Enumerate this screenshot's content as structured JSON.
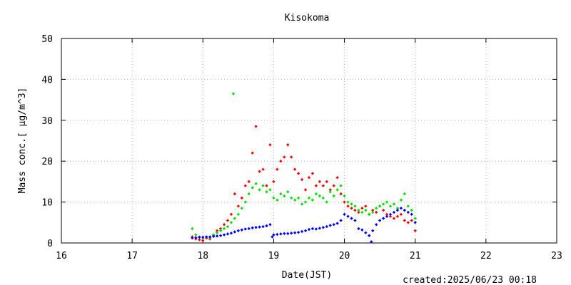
{
  "chart_data": {
    "type": "scatter",
    "title": "Kisokoma",
    "xlabel": "Date(JST)",
    "ylabel": "Mass conc.[ μg/m^3]",
    "xlim": [
      16,
      23
    ],
    "ylim": [
      0,
      50
    ],
    "xticks": [
      "16",
      "17",
      "18",
      "19",
      "20",
      "21",
      "22",
      "23"
    ],
    "yticks": [
      "0",
      "10",
      "20",
      "30",
      "40",
      "50"
    ],
    "grid": true,
    "footer": "created:2025/06/23 00:18",
    "series": [
      {
        "color": "#ff0000",
        "points": [
          [
            17.85,
            1.5
          ],
          [
            17.9,
            1.0
          ],
          [
            17.95,
            0.8
          ],
          [
            18.0,
            0.6
          ],
          [
            18.05,
            1.2
          ],
          [
            18.1,
            1.0
          ],
          [
            18.15,
            1.8
          ],
          [
            18.2,
            3.0
          ],
          [
            18.25,
            3.5
          ],
          [
            18.3,
            4.5
          ],
          [
            18.35,
            5.5
          ],
          [
            18.4,
            7.0
          ],
          [
            18.45,
            12.0
          ],
          [
            18.5,
            9.0
          ],
          [
            18.55,
            11.0
          ],
          [
            18.6,
            14.0
          ],
          [
            18.65,
            15.0
          ],
          [
            18.7,
            22.0
          ],
          [
            18.75,
            28.5
          ],
          [
            18.8,
            17.5
          ],
          [
            18.85,
            18.0
          ],
          [
            18.9,
            14.0
          ],
          [
            18.95,
            24.0
          ],
          [
            19.0,
            15.0
          ],
          [
            19.05,
            18.0
          ],
          [
            19.1,
            20.0
          ],
          [
            19.15,
            21.0
          ],
          [
            19.2,
            24.0
          ],
          [
            19.25,
            21.0
          ],
          [
            19.3,
            18.0
          ],
          [
            19.35,
            17.0
          ],
          [
            19.4,
            15.5
          ],
          [
            19.45,
            13.0
          ],
          [
            19.5,
            16.0
          ],
          [
            19.55,
            17.0
          ],
          [
            19.6,
            14.0
          ],
          [
            19.65,
            15.0
          ],
          [
            19.7,
            14.0
          ],
          [
            19.75,
            15.0
          ],
          [
            19.8,
            13.0
          ],
          [
            19.85,
            14.0
          ],
          [
            19.9,
            16.0
          ],
          [
            19.95,
            12.0
          ],
          [
            20.0,
            10.0
          ],
          [
            20.05,
            9.0
          ],
          [
            20.1,
            8.5
          ],
          [
            20.15,
            8.0
          ],
          [
            20.2,
            7.5
          ],
          [
            20.25,
            8.5
          ],
          [
            20.3,
            9.0
          ],
          [
            20.35,
            7.0
          ],
          [
            20.4,
            8.0
          ],
          [
            20.45,
            7.5
          ],
          [
            20.5,
            9.0
          ],
          [
            20.55,
            8.0
          ],
          [
            20.6,
            7.0
          ],
          [
            20.65,
            6.5
          ],
          [
            20.7,
            6.0
          ],
          [
            20.75,
            6.5
          ],
          [
            20.8,
            7.0
          ],
          [
            20.85,
            5.5
          ],
          [
            20.9,
            5.0
          ],
          [
            20.95,
            5.5
          ],
          [
            21.0,
            3.0
          ]
        ]
      },
      {
        "color": "#00e000",
        "points": [
          [
            17.85,
            3.5
          ],
          [
            17.9,
            2.0
          ],
          [
            17.95,
            1.5
          ],
          [
            18.0,
            1.2
          ],
          [
            18.05,
            1.5
          ],
          [
            18.1,
            1.3
          ],
          [
            18.15,
            2.0
          ],
          [
            18.2,
            2.5
          ],
          [
            18.25,
            3.0
          ],
          [
            18.3,
            3.5
          ],
          [
            18.35,
            4.0
          ],
          [
            18.4,
            5.0
          ],
          [
            18.43,
            36.5
          ],
          [
            18.45,
            6.0
          ],
          [
            18.5,
            7.0
          ],
          [
            18.55,
            8.5
          ],
          [
            18.6,
            10.0
          ],
          [
            18.65,
            12.0
          ],
          [
            18.7,
            13.5
          ],
          [
            18.75,
            14.5
          ],
          [
            18.8,
            13.0
          ],
          [
            18.85,
            14.0
          ],
          [
            18.9,
            12.5
          ],
          [
            18.95,
            13.0
          ],
          [
            19.0,
            11.0
          ],
          [
            19.05,
            10.5
          ],
          [
            19.1,
            12.0
          ],
          [
            19.15,
            11.5
          ],
          [
            19.2,
            12.5
          ],
          [
            19.25,
            11.0
          ],
          [
            19.3,
            10.5
          ],
          [
            19.35,
            11.0
          ],
          [
            19.4,
            9.5
          ],
          [
            19.45,
            10.0
          ],
          [
            19.5,
            11.0
          ],
          [
            19.55,
            10.5
          ],
          [
            19.6,
            12.0
          ],
          [
            19.65,
            11.5
          ],
          [
            19.7,
            11.0
          ],
          [
            19.75,
            10.0
          ],
          [
            19.8,
            12.5
          ],
          [
            19.85,
            11.5
          ],
          [
            19.9,
            13.0
          ],
          [
            19.95,
            14.0
          ],
          [
            20.0,
            11.5
          ],
          [
            20.05,
            10.0
          ],
          [
            20.1,
            9.5
          ],
          [
            20.15,
            9.0
          ],
          [
            20.2,
            8.0
          ],
          [
            20.25,
            7.5
          ],
          [
            20.3,
            8.0
          ],
          [
            20.35,
            7.0
          ],
          [
            20.4,
            7.5
          ],
          [
            20.45,
            8.5
          ],
          [
            20.5,
            9.0
          ],
          [
            20.55,
            9.5
          ],
          [
            20.6,
            10.0
          ],
          [
            20.65,
            9.0
          ],
          [
            20.7,
            9.5
          ],
          [
            20.75,
            8.5
          ],
          [
            20.8,
            10.5
          ],
          [
            20.85,
            12.0
          ],
          [
            20.9,
            9.0
          ],
          [
            20.95,
            8.0
          ],
          [
            21.0,
            6.0
          ]
        ]
      },
      {
        "color": "#0000ff",
        "points": [
          [
            17.85,
            1.2
          ],
          [
            17.9,
            1.3
          ],
          [
            17.95,
            1.4
          ],
          [
            18.0,
            1.4
          ],
          [
            18.05,
            1.5
          ],
          [
            18.1,
            1.5
          ],
          [
            18.15,
            1.6
          ],
          [
            18.2,
            1.7
          ],
          [
            18.25,
            1.8
          ],
          [
            18.3,
            2.0
          ],
          [
            18.35,
            2.2
          ],
          [
            18.4,
            2.4
          ],
          [
            18.45,
            2.7
          ],
          [
            18.5,
            3.0
          ],
          [
            18.55,
            3.2
          ],
          [
            18.6,
            3.4
          ],
          [
            18.65,
            3.5
          ],
          [
            18.7,
            3.7
          ],
          [
            18.75,
            3.8
          ],
          [
            18.8,
            3.9
          ],
          [
            18.85,
            4.0
          ],
          [
            18.9,
            4.2
          ],
          [
            18.95,
            4.5
          ],
          [
            18.98,
            1.5
          ],
          [
            19.0,
            2.0
          ],
          [
            19.05,
            2.1
          ],
          [
            19.1,
            2.2
          ],
          [
            19.15,
            2.3
          ],
          [
            19.2,
            2.3
          ],
          [
            19.25,
            2.4
          ],
          [
            19.3,
            2.5
          ],
          [
            19.35,
            2.6
          ],
          [
            19.4,
            2.8
          ],
          [
            19.45,
            3.0
          ],
          [
            19.5,
            3.3
          ],
          [
            19.55,
            3.5
          ],
          [
            19.6,
            3.4
          ],
          [
            19.65,
            3.6
          ],
          [
            19.7,
            3.8
          ],
          [
            19.75,
            4.0
          ],
          [
            19.8,
            4.3
          ],
          [
            19.85,
            4.5
          ],
          [
            19.9,
            4.8
          ],
          [
            19.95,
            5.5
          ],
          [
            20.0,
            7.0
          ],
          [
            20.05,
            6.5
          ],
          [
            20.1,
            6.0
          ],
          [
            20.15,
            5.5
          ],
          [
            20.2,
            3.5
          ],
          [
            20.25,
            3.2
          ],
          [
            20.3,
            2.5
          ],
          [
            20.35,
            1.8
          ],
          [
            20.38,
            0.3
          ],
          [
            20.4,
            3.0
          ],
          [
            20.45,
            4.5
          ],
          [
            20.5,
            5.5
          ],
          [
            20.55,
            6.0
          ],
          [
            20.6,
            6.5
          ],
          [
            20.65,
            7.0
          ],
          [
            20.7,
            7.5
          ],
          [
            20.75,
            8.0
          ],
          [
            20.8,
            8.5
          ],
          [
            20.85,
            8.0
          ],
          [
            20.9,
            7.5
          ],
          [
            20.95,
            7.0
          ],
          [
            21.0,
            5.0
          ]
        ]
      }
    ]
  }
}
